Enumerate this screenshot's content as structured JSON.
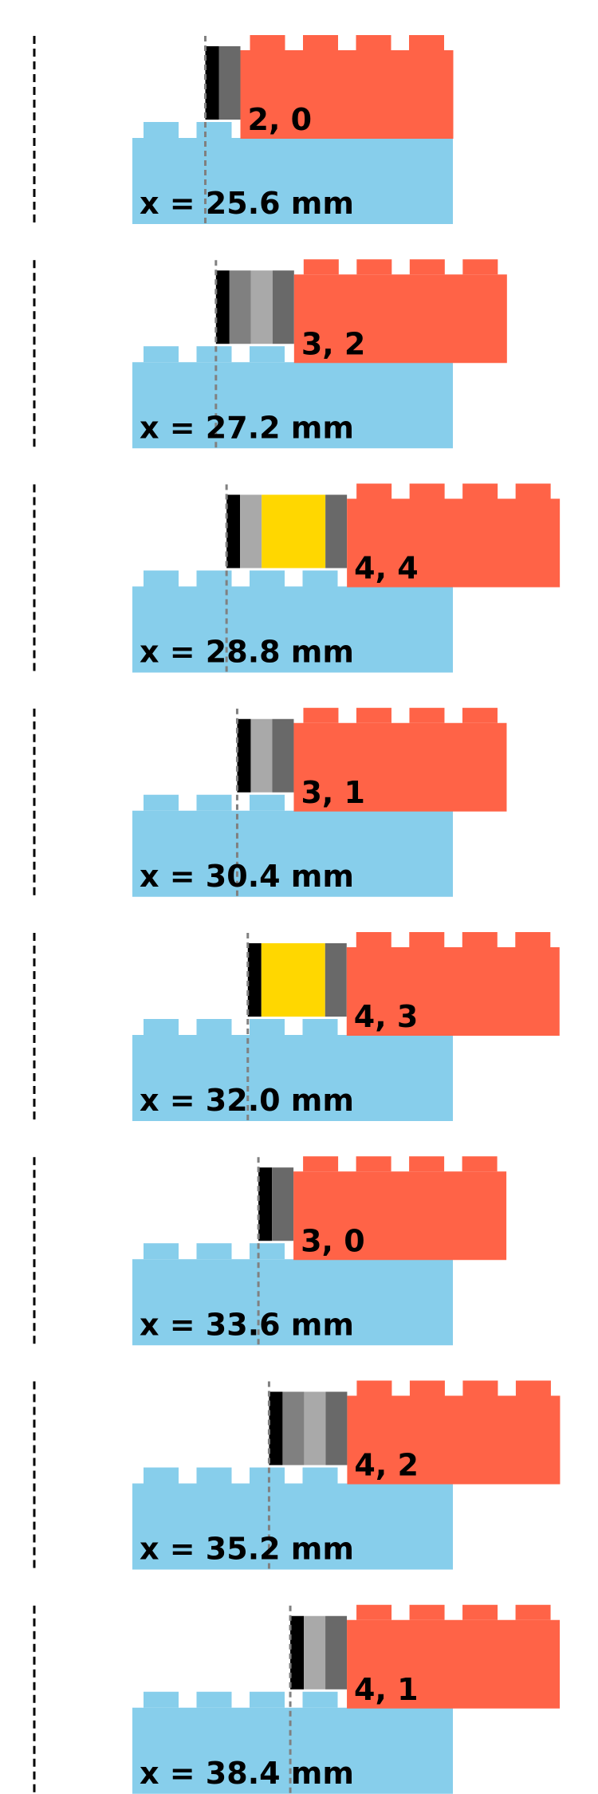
{
  "colors": {
    "base_brick": "#87CEEB",
    "top_brick": "#FF6347",
    "ref_line": "#000000",
    "pos_line": "#808080",
    "spacer_black": "#000000",
    "spacer_dark_gray": "#696969",
    "spacer_gray": "#808080",
    "spacer_light_gray": "#A9A9A9",
    "spacer_yellow": "#FFD700",
    "background": "#FFFFFF"
  },
  "panels": [
    {
      "x_label": "x = 25.6 mm",
      "combo_label": "2, 0",
      "offset_mm": 25.6,
      "top_studs": 4,
      "spacers": [
        "spacer_black",
        "spacer_dark_gray"
      ]
    },
    {
      "x_label": "x = 27.2 mm",
      "combo_label": "3, 2",
      "offset_mm": 27.2,
      "top_studs": 4,
      "spacers": [
        "spacer_black",
        "spacer_gray",
        "spacer_light_gray",
        "spacer_dark_gray"
      ]
    },
    {
      "x_label": "x = 28.8 mm",
      "combo_label": "4, 4",
      "offset_mm": 28.8,
      "top_studs": 4,
      "spacers": [
        "spacer_black",
        "spacer_light_gray",
        "spacer_yellow",
        "spacer_dark_gray"
      ]
    },
    {
      "x_label": "x = 30.4 mm",
      "combo_label": "3, 1",
      "offset_mm": 30.4,
      "top_studs": 4,
      "spacers": [
        "spacer_black",
        "spacer_light_gray",
        "spacer_dark_gray"
      ]
    },
    {
      "x_label": "x = 32.0 mm",
      "combo_label": "4, 3",
      "offset_mm": 32.0,
      "top_studs": 4,
      "spacers": [
        "spacer_black",
        "spacer_yellow",
        "spacer_dark_gray"
      ]
    },
    {
      "x_label": "x = 33.6 mm",
      "combo_label": "3, 0",
      "offset_mm": 33.6,
      "top_studs": 4,
      "spacers": [
        "spacer_black",
        "spacer_dark_gray"
      ]
    },
    {
      "x_label": "x = 35.2 mm",
      "combo_label": "4, 2",
      "offset_mm": 35.2,
      "top_studs": 4,
      "spacers": [
        "spacer_black",
        "spacer_gray",
        "spacer_light_gray",
        "spacer_dark_gray"
      ]
    },
    {
      "x_label": "x = 38.4 mm",
      "combo_label": "4, 1",
      "offset_mm": 38.4,
      "top_studs": 4,
      "spacers": [
        "spacer_black",
        "spacer_light_gray",
        "spacer_dark_gray"
      ]
    }
  ]
}
